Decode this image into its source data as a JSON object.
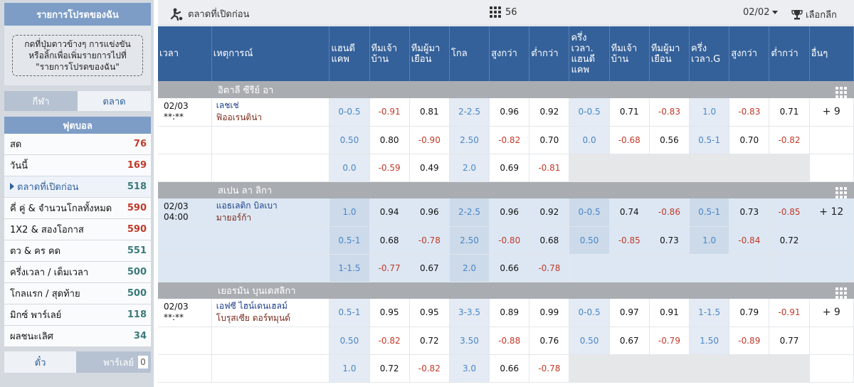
{
  "sidebar": {
    "favorites_title": "รายการโปรดของฉัน",
    "favorites_hint_line1": "กดที่ปุ่มดาวข้างๆ การแข่งขัน",
    "favorites_hint_line2": "หรือลิ้กเพื่อเพิ่มรายการไปที่",
    "favorites_hint_line3": "\"รายการโปรดของฉัน\"",
    "tab_sport": "กีฬา",
    "tab_market": "ตลาด",
    "section": "ฟุตบอล",
    "items": [
      {
        "label": "สด",
        "count": "76"
      },
      {
        "label": "วันนี้",
        "count": "169"
      },
      {
        "label": "ตลาดที่เปิดก่อน",
        "count": "518"
      },
      {
        "label": "คี่ คู่ & จำนวนโกลทั้งหมด",
        "count": "590"
      },
      {
        "label": "1X2 & สองโอกาส",
        "count": "590"
      },
      {
        "label": "ตว & คร คด",
        "count": "551"
      },
      {
        "label": "ครึ่งเวลา / เต็มเวลา",
        "count": "500"
      },
      {
        "label": "โกลแรก / สุดท้าย",
        "count": "500"
      },
      {
        "label": "มิกซ์ พาร์เลย์",
        "count": "118"
      },
      {
        "label": "ผลชนะเลิศ",
        "count": "34"
      }
    ],
    "bottom_ticket": "ตั๋ว",
    "bottom_parlay": "พาร์เลย์",
    "parlay_count": "0"
  },
  "topbar": {
    "title": "ตลาดที่เปิดก่อน",
    "match_count": "56",
    "date": "02/02",
    "select_league": "เลือกลีก"
  },
  "columns": [
    "เวลา",
    "เหตุการณ์",
    "แฮนดีแคพ",
    "ทีมเจ้าบ้าน",
    "ทีมผู้มาเยือน",
    "โกล",
    "สูงกว่า",
    "ต่ำกว่า",
    "ครึ่งเวลา. แฮนดีแคพ",
    "ทีมเจ้าบ้าน",
    "ทีมผู้มาเยือน",
    "ครึ่งเวลา.G",
    "สูงกว่า",
    "ต่ำกว่า",
    "อื่นๆ"
  ],
  "leagues": [
    {
      "name": "อิตาลี ซีรีย์ อา",
      "match": {
        "date": "02/03",
        "time": "**:**",
        "home": "เลชเช่",
        "away": "ฟิออเรนติน่า",
        "more": "+ 9"
      },
      "rows": [
        [
          "0-0.5",
          "-0.91",
          "0.81",
          "2-2.5",
          "0.96",
          "0.92",
          "0-0.5",
          "0.71",
          "-0.83",
          "1.0",
          "-0.83",
          "0.71"
        ],
        [
          "0.50",
          "0.80",
          "-0.90",
          "2.50",
          "-0.82",
          "0.70",
          "0.0",
          "-0.68",
          "0.56",
          "0.5-1",
          "0.70",
          "-0.82"
        ],
        [
          "0.0",
          "-0.59",
          "0.49",
          "2.0",
          "0.69",
          "-0.81",
          "",
          "",
          "",
          "",
          "",
          ""
        ]
      ]
    },
    {
      "name": "สเปน ลา ลิกา",
      "match": {
        "date": "02/03",
        "time": "04:00",
        "home": "แอธเลติก บิลเบา",
        "away": "มายอร์ก้า",
        "more": "+ 12"
      },
      "rows": [
        [
          "1.0",
          "0.94",
          "0.96",
          "2-2.5",
          "0.96",
          "0.92",
          "0-0.5",
          "0.74",
          "-0.86",
          "0.5-1",
          "0.73",
          "-0.85"
        ],
        [
          "0.5-1",
          "0.68",
          "-0.78",
          "2.50",
          "-0.80",
          "0.68",
          "0.50",
          "-0.85",
          "0.73",
          "1.0",
          "-0.84",
          "0.72"
        ],
        [
          "1-1.5",
          "-0.77",
          "0.67",
          "2.0",
          "0.66",
          "-0.78",
          "",
          "",
          "",
          "",
          "",
          ""
        ]
      ]
    },
    {
      "name": "เยอรมัน บุนเดสลิกา",
      "match": {
        "date": "02/03",
        "time": "**:**",
        "home": "เอฟซี ไฮน์เดนเฮลม์",
        "away": "โบรุสเซีย ดอร์ทมุนด์",
        "more": "+ 9"
      },
      "rows": [
        [
          "0.5-1",
          "0.95",
          "0.95",
          "3-3.5",
          "0.89",
          "0.99",
          "0-0.5",
          "0.97",
          "0.91",
          "1-1.5",
          "0.79",
          "-0.91"
        ],
        [
          "0.50",
          "-0.82",
          "0.72",
          "3.50",
          "-0.88",
          "0.76",
          "0.50",
          "0.67",
          "-0.79",
          "1.50",
          "-0.89",
          "0.77"
        ],
        [
          "1.0",
          "0.72",
          "-0.82",
          "3.0",
          "0.66",
          "-0.78",
          "",
          "",
          "",
          "",
          "",
          ""
        ]
      ]
    }
  ]
}
